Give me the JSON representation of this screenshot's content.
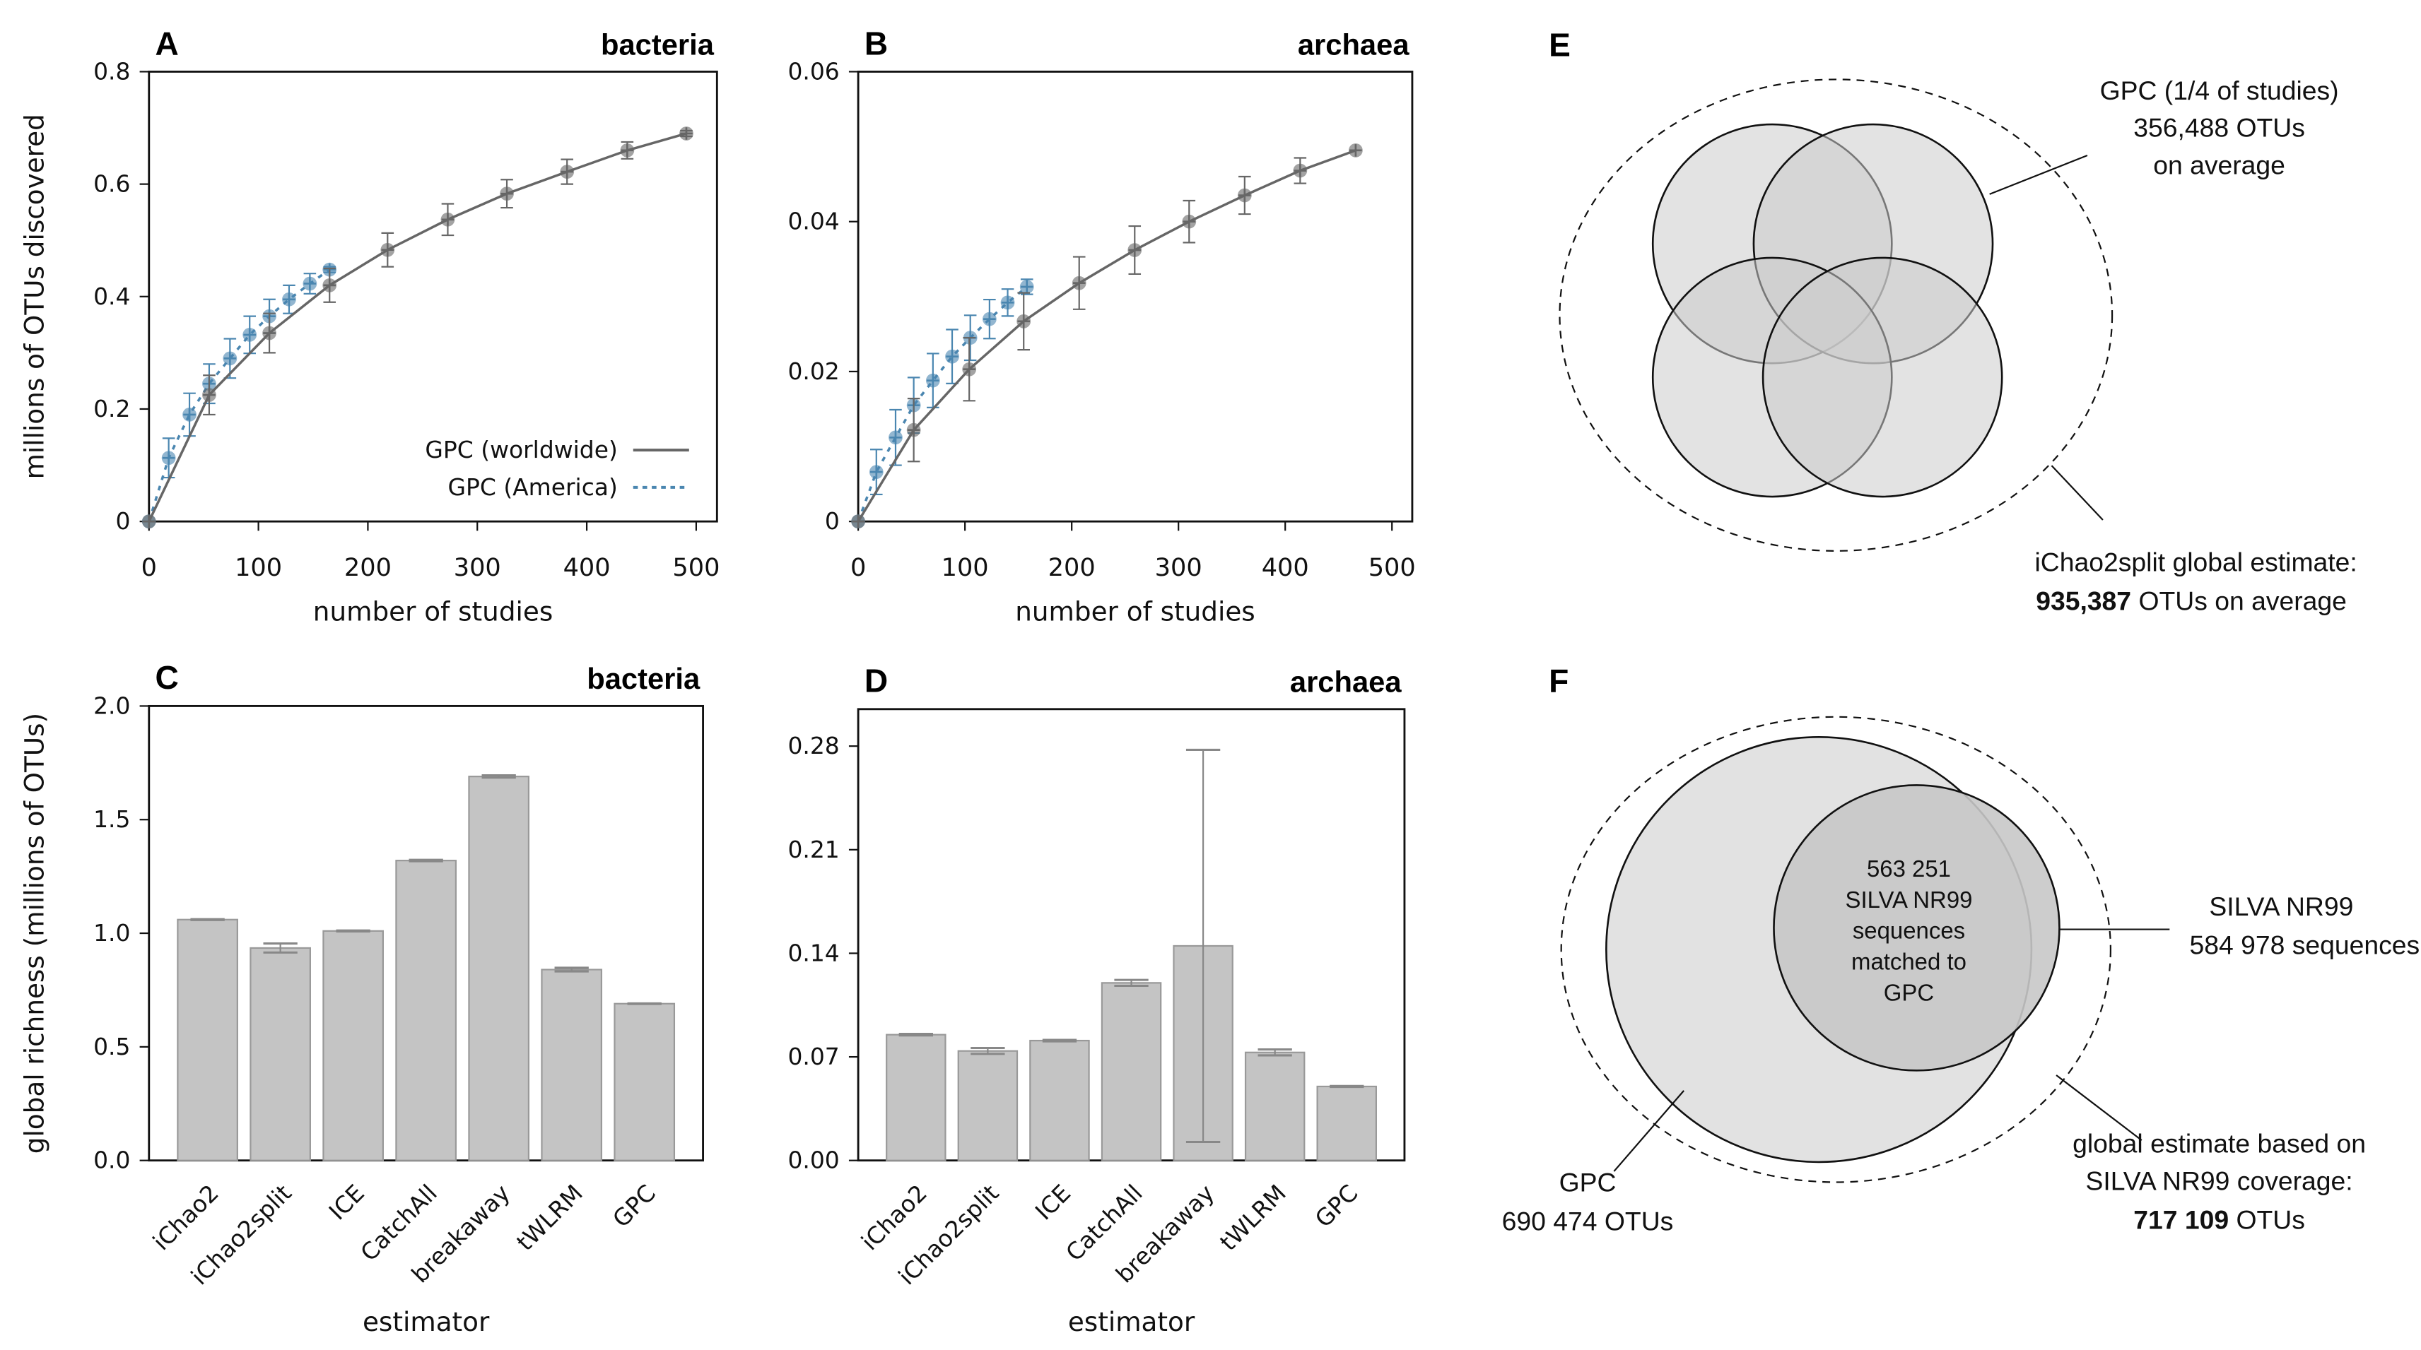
{
  "chart_data": [
    {
      "panel": "A",
      "type": "line",
      "title": "bacteria",
      "xlabel": "number of studies",
      "ylabel": "millions of OTUs discovered",
      "xlim": [
        0,
        519
      ],
      "ylim": [
        0,
        0.8
      ],
      "xticks": [
        "0",
        "100",
        "200",
        "300",
        "400",
        "500"
      ],
      "yticks": [
        "0",
        "0.2",
        "0.4",
        "0.6",
        "0.8"
      ],
      "legend_position": "bottom-right",
      "grid": false,
      "series": [
        {
          "name": "GPC (worldwide)",
          "color": "#666666",
          "style": "solid",
          "x": [
            0,
            55,
            110,
            165,
            218,
            273,
            327,
            382,
            437,
            491
          ],
          "y": [
            0,
            0.225,
            0.335,
            0.42,
            0.483,
            0.537,
            0.583,
            0.622,
            0.66,
            0.69
          ],
          "err": [
            0,
            0.035,
            0.035,
            0.03,
            0.03,
            0.028,
            0.025,
            0.022,
            0.015,
            0.005
          ]
        },
        {
          "name": "GPC (America)",
          "color": "#4a86b0",
          "style": "dotted",
          "x": [
            0,
            18,
            37,
            55,
            74,
            92,
            110,
            128,
            147,
            165
          ],
          "y": [
            0,
            0.113,
            0.19,
            0.245,
            0.29,
            0.332,
            0.365,
            0.395,
            0.423,
            0.448
          ],
          "err": [
            0,
            0.035,
            0.038,
            0.035,
            0.035,
            0.033,
            0.03,
            0.025,
            0.018,
            0.005
          ]
        }
      ]
    },
    {
      "panel": "B",
      "type": "line",
      "title": "archaea",
      "xlabel": "number of studies",
      "ylabel": "",
      "xlim": [
        0,
        519
      ],
      "ylim": [
        0,
        0.06
      ],
      "xticks": [
        "0",
        "100",
        "200",
        "300",
        "400",
        "500"
      ],
      "yticks": [
        "0",
        "0.02",
        "0.04",
        "0.06"
      ],
      "grid": false,
      "series": [
        {
          "color": "#666666",
          "style": "solid",
          "x": [
            0,
            52,
            104,
            155,
            207,
            259,
            310,
            362,
            414,
            466
          ],
          "y": [
            0,
            0.0122,
            0.0203,
            0.0267,
            0.0318,
            0.0362,
            0.04,
            0.0435,
            0.0468,
            0.0495
          ],
          "err": [
            0,
            0.0042,
            0.0042,
            0.0038,
            0.0035,
            0.0032,
            0.0028,
            0.0025,
            0.0017,
            0
          ]
        },
        {
          "color": "#4a86b0",
          "style": "dotted",
          "x": [
            0,
            17,
            35,
            52,
            70,
            88,
            105,
            123,
            140,
            158
          ],
          "y": [
            0,
            0.0066,
            0.0112,
            0.0155,
            0.0188,
            0.022,
            0.0245,
            0.027,
            0.0292,
            0.0313
          ],
          "err": [
            0,
            0.003,
            0.0037,
            0.0037,
            0.0036,
            0.0036,
            0.003,
            0.0026,
            0.0018,
            0.001
          ]
        }
      ]
    },
    {
      "panel": "C",
      "type": "bar",
      "title": "bacteria",
      "xlabel": "estimator",
      "ylabel": "global richness (millions of OTUs)",
      "ylim": [
        0,
        2.0
      ],
      "yticks": [
        "0.0",
        "0.5",
        "1.0",
        "1.5",
        "2.0"
      ],
      "categories": [
        "iChao2",
        "iChao2split",
        "ICE",
        "CatchAll",
        "breakaway",
        "tWLRM",
        "GPC"
      ],
      "values": [
        1.06,
        0.935,
        1.01,
        1.32,
        1.69,
        0.84,
        0.69
      ],
      "err": [
        0.002,
        0.02,
        0.002,
        0.003,
        0.005,
        0.008,
        0.001
      ],
      "bar_color": "#c4c4c4"
    },
    {
      "panel": "D",
      "type": "bar",
      "title": "archaea",
      "xlabel": "estimator",
      "ylabel": "",
      "ylim": [
        0,
        0.305
      ],
      "yticks": [
        "0.00",
        "0.07",
        "0.14",
        "0.21",
        "0.28"
      ],
      "categories": [
        "iChao2",
        "iChao2split",
        "ICE",
        "CatchAll",
        "breakaway",
        "tWLRM",
        "GPC"
      ],
      "values": [
        0.085,
        0.074,
        0.081,
        0.12,
        0.145,
        0.073,
        0.05
      ],
      "err": [
        0.0005,
        0.002,
        0.0005,
        0.002,
        0.1325,
        0.002,
        0.0003
      ],
      "bar_color": "#c4c4c4"
    }
  ],
  "venn_e": {
    "panel": "E",
    "gpc_label": [
      "GPC (1/4 of studies)",
      "356,488 OTUs",
      "on average"
    ],
    "estimate_line1": "iChao2split global estimate:",
    "estimate_bold": "935,387",
    "estimate_rest": " OTUs on average"
  },
  "venn_f": {
    "panel": "F",
    "center_text": [
      "563 251",
      "SILVA NR99",
      "sequences",
      "matched to",
      "GPC"
    ],
    "silva_label": [
      "SILVA NR99",
      "584 978 sequences"
    ],
    "gpc_label": [
      "GPC",
      "690 474 OTUs"
    ],
    "estimate_lines": [
      "global estimate based on",
      "SILVA NR99 coverage:"
    ],
    "estimate_bold": "717 109",
    "estimate_rest": " OTUs"
  }
}
